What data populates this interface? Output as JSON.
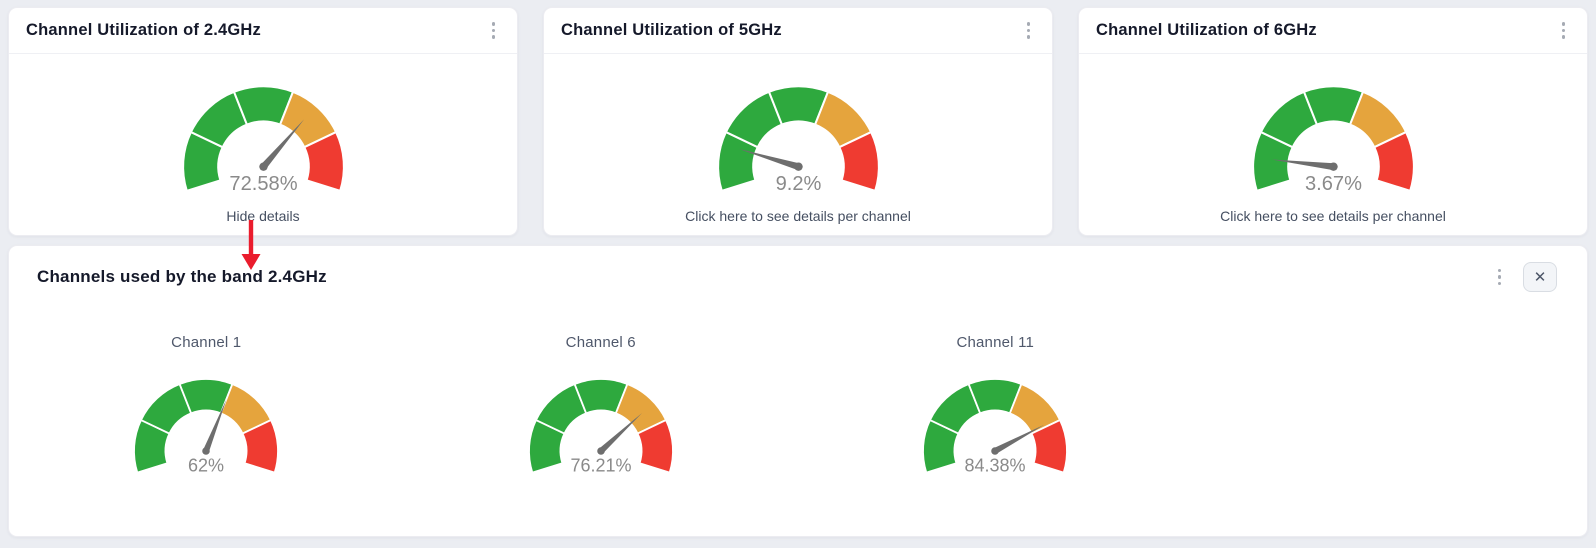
{
  "page": {
    "background": "#ebedf2"
  },
  "gauge": {
    "band_start_angle": 197.5,
    "band_end_angle": -17.5,
    "needle_scale_start_angle": 180,
    "needle_scale_end_angle": 0,
    "segment_colors": [
      "#2ea93e",
      "#2ea93e",
      "#2ea93e",
      "#e5a43d",
      "#ef3b31"
    ],
    "needle_color": "#6e6e6e",
    "value_color": "#8a8a8a"
  },
  "cards": [
    {
      "title": "Channel Utilization of 2.4GHz",
      "menu_icon": "kebab-vertical",
      "gauge": {
        "value": 72.58,
        "label": "72.58%"
      },
      "link": "Hide details"
    },
    {
      "title": "Channel Utilization of 5GHz",
      "menu_icon": "kebab-vertical",
      "gauge": {
        "value": 9.2,
        "label": "9.2%"
      },
      "link": "Click here to see details per channel"
    },
    {
      "title": "Channel Utilization of 6GHz",
      "menu_icon": "kebab-vertical",
      "gauge": {
        "value": 3.67,
        "label": "3.67%"
      },
      "link": "Click here to see details per channel"
    }
  ],
  "details_panel": {
    "title": "Channels used by the band 2.4GHz",
    "menu_icon": "kebab-vertical",
    "close_icon": "✕",
    "channels": [
      {
        "label": "Channel 1",
        "gauge": {
          "value": 62,
          "label": "62%"
        }
      },
      {
        "label": "Channel 6",
        "gauge": {
          "value": 76.21,
          "label": "76.21%"
        }
      },
      {
        "label": "Channel 11",
        "gauge": {
          "value": 84.38,
          "label": "84.38%"
        }
      }
    ]
  },
  "annotation_arrow": {
    "color": "#ea1c2d",
    "from": "Hide details",
    "to": "Channels used by the band 2.4GHz"
  }
}
